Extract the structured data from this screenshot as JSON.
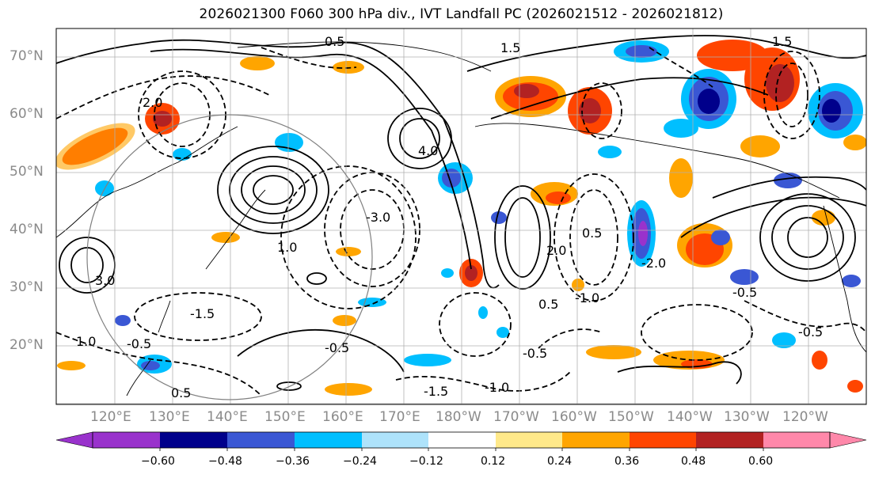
{
  "title": "2026021300 F060 300 hPa div., IVT Landfall PC (2026021512 - 2026021812)",
  "map": {
    "field": "300 hPa div.",
    "lat_labels": [
      "70°N",
      "60°N",
      "50°N",
      "40°N",
      "30°N",
      "20°N"
    ],
    "lon_labels": [
      "120°E",
      "130°E",
      "140°E",
      "150°E",
      "160°E",
      "170°E",
      "180°W",
      "170°W",
      "160°W",
      "150°W",
      "140°W",
      "130°W",
      "120°W"
    ],
    "contour_labels": [
      "2.0",
      "1.5",
      "0.5",
      "-0.5",
      "1.0",
      "-1.0",
      "-1.5",
      "3.0",
      "-3.0",
      "4.0",
      "-0.5",
      "0.5",
      "-0.5",
      "-1.0",
      "2.0",
      "1.0",
      "-0.5",
      "0.5",
      "-2.0",
      "1.5",
      "0.5",
      "-1.5",
      "-0.5"
    ]
  },
  "colorbar": {
    "colors": [
      "#9932cc",
      "#00008b",
      "#3a57d4",
      "#00bfff",
      "#aee3fb",
      "#ffffff",
      "#ffe98a",
      "#ffa500",
      "#ff4500",
      "#b22222",
      "#ff88aa"
    ],
    "under_color": "#9932cc",
    "over_color": "#ff88aa",
    "ticks": [
      "−0.60",
      "−0.48",
      "−0.36",
      "−0.24",
      "−0.12",
      "0.12",
      "0.24",
      "0.36",
      "0.48",
      "0.60"
    ]
  }
}
